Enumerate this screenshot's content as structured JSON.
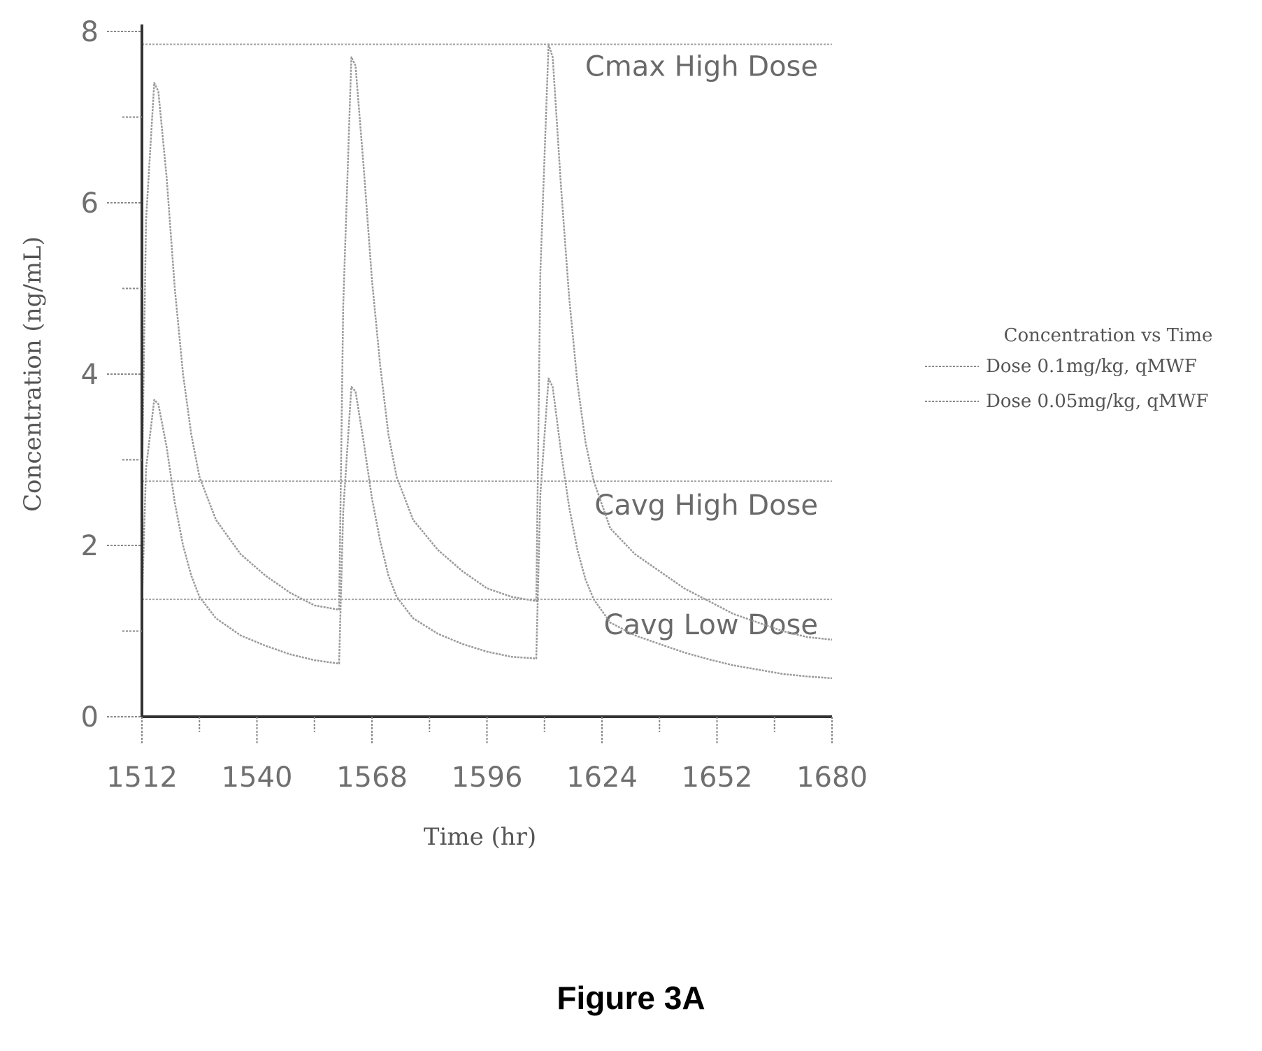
{
  "chart_data": {
    "type": "line",
    "xlabel": "Time (hr)",
    "ylabel": "Concentration (ng/mL)",
    "xlim": [
      1512,
      1680
    ],
    "ylim": [
      0,
      8
    ],
    "x_ticks": [
      1512,
      1540,
      1568,
      1596,
      1624,
      1652,
      1680
    ],
    "y_ticks": [
      0,
      2,
      4,
      6,
      8
    ],
    "grid": false,
    "legend": {
      "title": "Concentration vs Time",
      "placement": "right",
      "entries": [
        "Dose 0.1mg/kg, qMWF",
        "Dose 0.05mg/kg, qMWF"
      ]
    },
    "series": [
      {
        "name": "Dose 0.1mg/kg, qMWF",
        "color": "#9a9a9a",
        "x": [
          1512,
          1513,
          1515,
          1516,
          1518,
          1520,
          1522,
          1524,
          1526,
          1530,
          1536,
          1542,
          1548,
          1554,
          1560,
          1561,
          1563,
          1564,
          1566,
          1568,
          1570,
          1572,
          1574,
          1578,
          1584,
          1590,
          1596,
          1602,
          1608,
          1609,
          1611,
          1612,
          1614,
          1616,
          1618,
          1620,
          1622,
          1626,
          1632,
          1638,
          1644,
          1650,
          1656,
          1662,
          1668,
          1674,
          1680
        ],
        "y": [
          2.7,
          5.8,
          7.4,
          7.3,
          6.3,
          5.0,
          4.0,
          3.3,
          2.8,
          2.3,
          1.9,
          1.65,
          1.45,
          1.3,
          1.25,
          4.8,
          7.7,
          7.6,
          6.4,
          5.1,
          4.1,
          3.3,
          2.8,
          2.3,
          1.95,
          1.7,
          1.5,
          1.4,
          1.35,
          5.2,
          7.85,
          7.7,
          6.2,
          4.9,
          3.9,
          3.2,
          2.75,
          2.2,
          1.9,
          1.7,
          1.5,
          1.35,
          1.2,
          1.1,
          1.0,
          0.93,
          0.9
        ]
      },
      {
        "name": "Dose 0.05mg/kg, qMWF",
        "color": "#9a9a9a",
        "x": [
          1512,
          1513,
          1515,
          1516,
          1518,
          1520,
          1522,
          1524,
          1526,
          1530,
          1536,
          1542,
          1548,
          1554,
          1560,
          1561,
          1563,
          1564,
          1566,
          1568,
          1570,
          1572,
          1574,
          1578,
          1584,
          1590,
          1596,
          1602,
          1608,
          1609,
          1611,
          1612,
          1614,
          1616,
          1618,
          1620,
          1622,
          1626,
          1632,
          1638,
          1644,
          1650,
          1656,
          1662,
          1668,
          1674,
          1680
        ],
        "y": [
          1.3,
          2.9,
          3.7,
          3.65,
          3.15,
          2.5,
          2.0,
          1.65,
          1.4,
          1.15,
          0.95,
          0.83,
          0.73,
          0.66,
          0.62,
          2.4,
          3.85,
          3.8,
          3.2,
          2.55,
          2.05,
          1.65,
          1.4,
          1.15,
          0.97,
          0.85,
          0.76,
          0.7,
          0.68,
          2.6,
          3.95,
          3.85,
          3.1,
          2.45,
          1.95,
          1.6,
          1.37,
          1.1,
          0.95,
          0.85,
          0.75,
          0.67,
          0.6,
          0.55,
          0.5,
          0.47,
          0.45
        ]
      }
    ],
    "reference_lines": [
      {
        "label": "Cmax High Dose",
        "y": 7.85
      },
      {
        "label": "Cavg High Dose",
        "y": 2.75
      },
      {
        "label": "Cavg Low Dose",
        "y": 1.37
      }
    ]
  },
  "caption": "Figure 3A"
}
